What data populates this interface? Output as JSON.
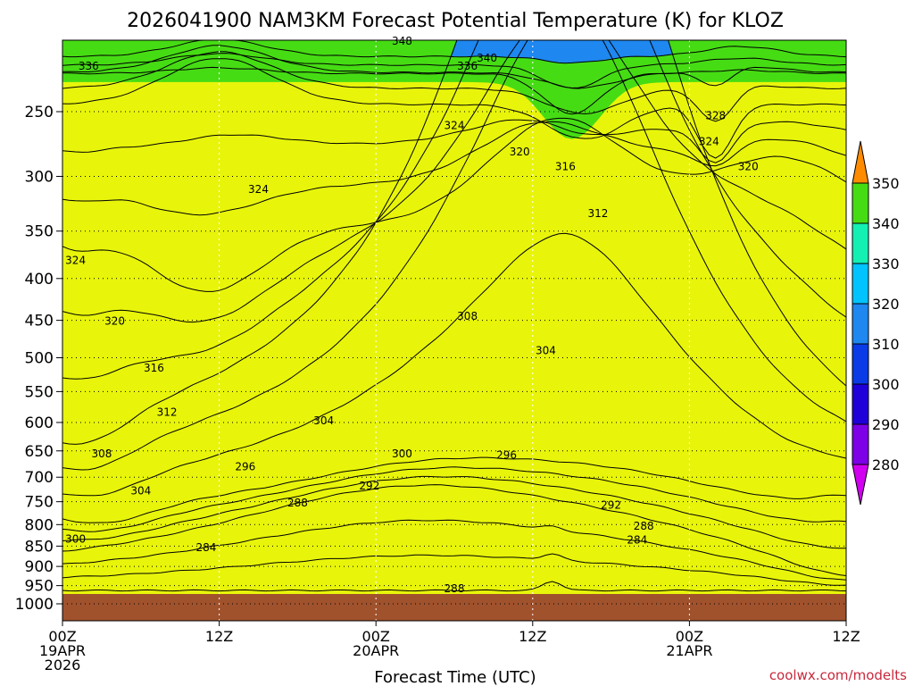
{
  "chart_data": {
    "type": "heatmap",
    "title": "2026041900 NAM3KM Forecast Potential Temperature (K) for KLOZ",
    "xlabel": "Forecast Time (UTC)",
    "ylabel": "",
    "credit": "coolwx.com/modelts",
    "x_range_hours": [
      0,
      60
    ],
    "y_range_hpa": [
      200,
      1000
    ],
    "x_ticks": [
      {
        "hour": 0,
        "lines": [
          "00Z",
          "19APR",
          "2026"
        ]
      },
      {
        "hour": 12,
        "lines": [
          "12Z"
        ]
      },
      {
        "hour": 24,
        "lines": [
          "00Z",
          "20APR"
        ]
      },
      {
        "hour": 36,
        "lines": [
          "12Z"
        ]
      },
      {
        "hour": 48,
        "lines": [
          "00Z",
          "21APR"
        ]
      },
      {
        "hour": 60,
        "lines": [
          "12Z"
        ]
      }
    ],
    "y_ticks": [
      "250",
      "300",
      "350",
      "400",
      "450",
      "500",
      "550",
      "600",
      "650",
      "700",
      "750",
      "800",
      "850",
      "900",
      "950",
      "1000"
    ],
    "colorbar": {
      "levels": [
        "280",
        "290",
        "300",
        "310",
        "320",
        "330",
        "340",
        "350"
      ],
      "colors": [
        "#d200f0",
        "#7d00e6",
        "#1f00d9",
        "#0a3be6",
        "#1e87f0",
        "#00c3ff",
        "#14f0b4",
        "#46dc14",
        "#e8f50a",
        "#ffc800",
        "#ff8c00"
      ]
    },
    "surface_color": "#a0522d",
    "contour_labels": [
      {
        "text": "348",
        "hour": 26.0,
        "hpa": 205
      },
      {
        "text": "340",
        "hour": 32.5,
        "hpa": 215
      },
      {
        "text": "336",
        "hour": 2.0,
        "hpa": 220
      },
      {
        "text": "336",
        "hour": 31.0,
        "hpa": 220
      },
      {
        "text": "328",
        "hour": 50.0,
        "hpa": 253
      },
      {
        "text": "324",
        "hour": 30.0,
        "hpa": 260
      },
      {
        "text": "324",
        "hour": 49.5,
        "hpa": 272
      },
      {
        "text": "320",
        "hour": 35.0,
        "hpa": 280
      },
      {
        "text": "320",
        "hour": 52.5,
        "hpa": 292
      },
      {
        "text": "316",
        "hour": 38.5,
        "hpa": 292
      },
      {
        "text": "324",
        "hour": 15.0,
        "hpa": 311
      },
      {
        "text": "312",
        "hour": 41.0,
        "hpa": 333
      },
      {
        "text": "324",
        "hour": 1.0,
        "hpa": 380
      },
      {
        "text": "320",
        "hour": 4.0,
        "hpa": 451
      },
      {
        "text": "308",
        "hour": 31.0,
        "hpa": 445
      },
      {
        "text": "316",
        "hour": 7.0,
        "hpa": 515
      },
      {
        "text": "304",
        "hour": 37.0,
        "hpa": 490
      },
      {
        "text": "312",
        "hour": 8.0,
        "hpa": 583
      },
      {
        "text": "304",
        "hour": 20.0,
        "hpa": 597
      },
      {
        "text": "308",
        "hour": 3.0,
        "hpa": 655
      },
      {
        "text": "300",
        "hour": 26.0,
        "hpa": 655
      },
      {
        "text": "296",
        "hour": 34.0,
        "hpa": 658
      },
      {
        "text": "296",
        "hour": 14.0,
        "hpa": 680
      },
      {
        "text": "292",
        "hour": 23.5,
        "hpa": 717
      },
      {
        "text": "304",
        "hour": 6.0,
        "hpa": 727
      },
      {
        "text": "288",
        "hour": 18.0,
        "hpa": 753
      },
      {
        "text": "292",
        "hour": 42.0,
        "hpa": 757
      },
      {
        "text": "288",
        "hour": 44.5,
        "hpa": 803
      },
      {
        "text": "300",
        "hour": 1.0,
        "hpa": 833
      },
      {
        "text": "284",
        "hour": 44.0,
        "hpa": 835
      },
      {
        "text": "284",
        "hour": 11.0,
        "hpa": 853
      },
      {
        "text": "288",
        "hour": 30.0,
        "hpa": 958
      }
    ]
  }
}
